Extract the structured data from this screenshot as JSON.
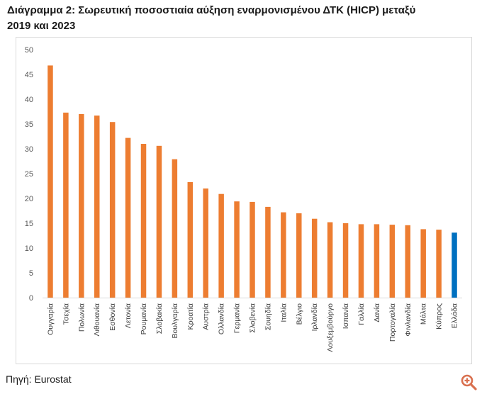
{
  "title": "Διάγραμμα 2: Σωρευτική ποσοστιαία αύξηση εναρμονισμένου ΔΤΚ (HICP)  μεταξύ\n2019 και 2023",
  "source": "Πηγή: Eurostat",
  "chart_data": {
    "type": "bar",
    "title": "Διάγραμμα 2: Σωρευτική ποσοστιαία αύξηση εναρμονισμένου ΔΤΚ (HICP)  μεταξύ 2019 και 2023",
    "xlabel": "",
    "ylabel": "",
    "ylim": [
      0,
      50
    ],
    "yticks": [
      0,
      5,
      10,
      15,
      20,
      25,
      30,
      35,
      40,
      45,
      50
    ],
    "grid": false,
    "categories": [
      "Ουγγαρία",
      "Τσεχία",
      "Πολωνία",
      "Λιθουανία",
      "Εσθονία",
      "Λετονία",
      "Ρουμανία",
      "Σλοβακία",
      "Βουλγαρία",
      "Κροατία",
      "Αυστρία",
      "Ολλανδία",
      "Γερμανία",
      "Σλοβενία",
      "Σουηδία",
      "Ιταλία",
      "Βέλγιο",
      "Ιρλανδία",
      "Λουξεμβούργο",
      "Ισπανία",
      "Γαλλία",
      "Δανία",
      "Πορτογαλία",
      "Φινλανδία",
      "Μάλτα",
      "Κύπρος",
      "Ελλάδα"
    ],
    "values": [
      46.8,
      37.3,
      37.0,
      36.7,
      35.4,
      32.2,
      31.0,
      30.6,
      27.9,
      23.3,
      22.0,
      20.9,
      19.4,
      19.3,
      18.3,
      17.2,
      17.0,
      15.9,
      15.2,
      15.0,
      14.8,
      14.8,
      14.7,
      14.6,
      13.8,
      13.7,
      13.1
    ],
    "colors": {
      "default": "#ed7d31",
      "highlight": "#0070c0",
      "highlight_category": "Ελλάδα"
    }
  },
  "ui": {
    "zoom_icon": "zoom-in-icon",
    "zoom_color": "#d9704f"
  }
}
